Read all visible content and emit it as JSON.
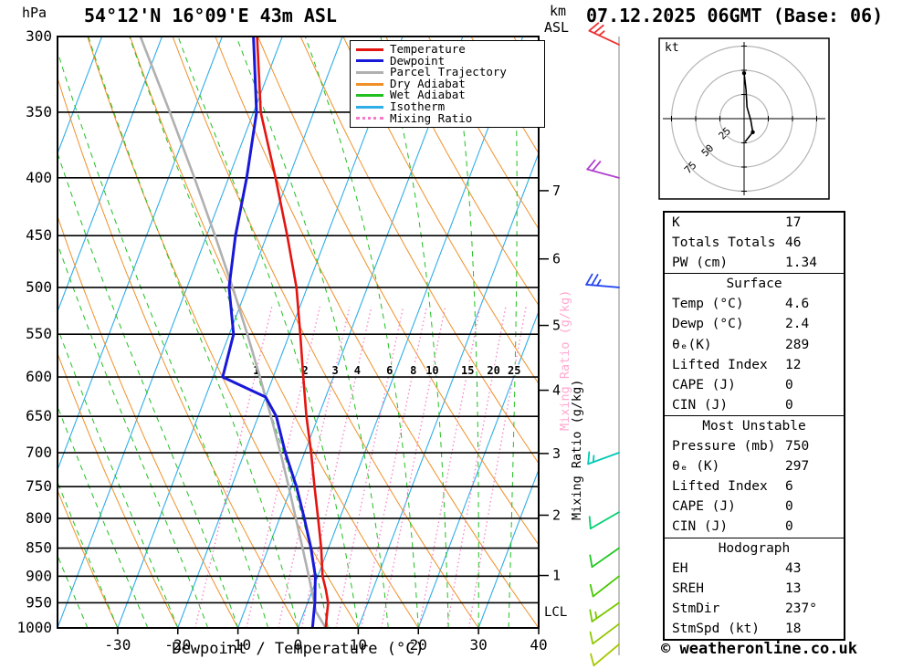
{
  "header": {
    "pressure_unit": "hPa",
    "station": "54°12'N 16°09'E 43m ASL",
    "datetime": "07.12.2025 06GMT (Base: 06)",
    "altitude_unit_line1": "km",
    "altitude_unit_line2": "ASL"
  },
  "axes": {
    "xlabel": "Dewpoint / Temperature (°C)",
    "x_ticks_c": [
      -30,
      -20,
      -10,
      0,
      10,
      20,
      30,
      40
    ],
    "pressure_ticks_hpa": [
      300,
      350,
      400,
      450,
      500,
      550,
      600,
      650,
      700,
      750,
      800,
      850,
      900,
      950,
      1000
    ],
    "km_ticks": [
      7,
      6,
      5,
      4,
      3,
      2,
      1
    ],
    "lcl_label": "LCL",
    "mixing_ratio_axis_label": "Mixing Ratio (g/kg)"
  },
  "legend": [
    {
      "label": "Temperature",
      "color": "#e41410",
      "style": "solid"
    },
    {
      "label": "Dewpoint",
      "color": "#1818d8",
      "style": "solid"
    },
    {
      "label": "Parcel Trajectory",
      "color": "#b0b0b0",
      "style": "solid"
    },
    {
      "label": "Dry Adiabat",
      "color": "#f09028",
      "style": "solid"
    },
    {
      "label": "Wet Adiabat",
      "color": "#20c020",
      "style": "solid"
    },
    {
      "label": "Isotherm",
      "color": "#30aee8",
      "style": "solid"
    },
    {
      "label": "Mixing Ratio",
      "color": "#f878c8",
      "style": "dotted"
    }
  ],
  "chart_data": {
    "type": "skewt-logp",
    "pressure_range_hpa": [
      300,
      1000
    ],
    "temp_axis_range_c_at_1000hpa": [
      -40,
      40
    ],
    "isotherm_interval_c": 10,
    "dry_adiabat_interval_k": 10,
    "wet_adiabat_interval_c": 5,
    "mixing_ratio_lines_g_kg": [
      1,
      2,
      3,
      4,
      6,
      8,
      10,
      15,
      20,
      25
    ],
    "series": [
      {
        "name": "Temperature",
        "color": "#e41410",
        "points_p_t": [
          [
            1000,
            4.6
          ],
          [
            975,
            4.0
          ],
          [
            950,
            3.4
          ],
          [
            925,
            2.2
          ],
          [
            900,
            0.8
          ],
          [
            850,
            -1.2
          ],
          [
            800,
            -3.6
          ],
          [
            750,
            -6.2
          ],
          [
            700,
            -8.9
          ],
          [
            650,
            -12.0
          ],
          [
            600,
            -15.0
          ],
          [
            550,
            -18.2
          ],
          [
            500,
            -21.8
          ],
          [
            450,
            -26.6
          ],
          [
            400,
            -32.2
          ],
          [
            350,
            -38.8
          ],
          [
            300,
            -44.2
          ]
        ]
      },
      {
        "name": "Dewpoint",
        "color": "#1818d8",
        "points_p_t": [
          [
            1000,
            2.4
          ],
          [
            975,
            1.8
          ],
          [
            950,
            1.2
          ],
          [
            925,
            0.4
          ],
          [
            900,
            -0.4
          ],
          [
            850,
            -2.9
          ],
          [
            800,
            -5.9
          ],
          [
            750,
            -9.2
          ],
          [
            700,
            -13.2
          ],
          [
            650,
            -17.0
          ],
          [
            625,
            -20.0
          ],
          [
            600,
            -28.4
          ],
          [
            550,
            -29.3
          ],
          [
            500,
            -33.0
          ],
          [
            450,
            -35.2
          ],
          [
            400,
            -37.0
          ],
          [
            350,
            -39.5
          ],
          [
            300,
            -44.8
          ]
        ]
      },
      {
        "name": "Parcel Trajectory",
        "color": "#b0b0b0",
        "points_p_t": [
          [
            1000,
            4.6
          ],
          [
            967,
            1.9
          ],
          [
            950,
            1.1
          ],
          [
            900,
            -1.5
          ],
          [
            850,
            -4.3
          ],
          [
            800,
            -7.3
          ],
          [
            750,
            -10.5
          ],
          [
            700,
            -14.0
          ],
          [
            650,
            -17.9
          ],
          [
            600,
            -22.2
          ],
          [
            550,
            -27.0
          ],
          [
            500,
            -32.4
          ],
          [
            450,
            -38.6
          ],
          [
            400,
            -45.7
          ],
          [
            350,
            -53.9
          ],
          [
            300,
            -63.6
          ]
        ]
      }
    ]
  },
  "wind_barbs": [
    {
      "pressure_hpa": 305,
      "dir_deg": 295,
      "speed_kt": 25,
      "color": "#f03030"
    },
    {
      "pressure_hpa": 400,
      "dir_deg": 285,
      "speed_kt": 20,
      "color": "#b040d0"
    },
    {
      "pressure_hpa": 500,
      "dir_deg": 275,
      "speed_kt": 25,
      "color": "#2848f0"
    },
    {
      "pressure_hpa": 700,
      "dir_deg": 250,
      "speed_kt": 15,
      "color": "#00c8b4"
    },
    {
      "pressure_hpa": 790,
      "dir_deg": 240,
      "speed_kt": 10,
      "color": "#00d070"
    },
    {
      "pressure_hpa": 850,
      "dir_deg": 235,
      "speed_kt": 10,
      "color": "#20c820"
    },
    {
      "pressure_hpa": 900,
      "dir_deg": 232,
      "speed_kt": 10,
      "color": "#48c800"
    },
    {
      "pressure_hpa": 950,
      "dir_deg": 235,
      "speed_kt": 15,
      "color": "#78c800"
    },
    {
      "pressure_hpa": 992,
      "dir_deg": 233,
      "speed_kt": 12,
      "color": "#90c800"
    },
    {
      "pressure_hpa": 1008,
      "dir_deg": 230,
      "speed_kt": 10,
      "color": "#a8c800"
    }
  ],
  "hodograph": {
    "unit_label": "kt",
    "rings_kt": [
      25,
      50,
      75
    ],
    "trace_uv_kt": [
      [
        1,
        -24
      ],
      [
        9,
        -14
      ],
      [
        7,
        -2
      ],
      [
        3,
        12
      ],
      [
        2,
        30
      ],
      [
        0,
        47
      ]
    ]
  },
  "table": {
    "sections": [
      {
        "rows": [
          [
            "K",
            "17"
          ],
          [
            "Totals Totals",
            "46"
          ],
          [
            "PW (cm)",
            "1.34"
          ]
        ]
      },
      {
        "header": "Surface",
        "rows": [
          [
            "Temp (°C)",
            "4.6"
          ],
          [
            "Dewp (°C)",
            "2.4"
          ],
          [
            "θₑ(K)",
            "289"
          ],
          [
            "Lifted Index",
            "12"
          ],
          [
            "CAPE (J)",
            "0"
          ],
          [
            "CIN (J)",
            "0"
          ]
        ]
      },
      {
        "header": "Most Unstable",
        "rows": [
          [
            "Pressure (mb)",
            "750"
          ],
          [
            "θₑ (K)",
            "297"
          ],
          [
            "Lifted Index",
            "6"
          ],
          [
            "CAPE (J)",
            "0"
          ],
          [
            "CIN (J)",
            "0"
          ]
        ]
      },
      {
        "header": "Hodograph",
        "rows": [
          [
            "EH",
            "43"
          ],
          [
            "SREH",
            "13"
          ],
          [
            "StmDir",
            "237°"
          ],
          [
            "StmSpd (kt)",
            "18"
          ]
        ]
      }
    ]
  },
  "footer": {
    "copyright": "© weatheronline.co.uk"
  }
}
